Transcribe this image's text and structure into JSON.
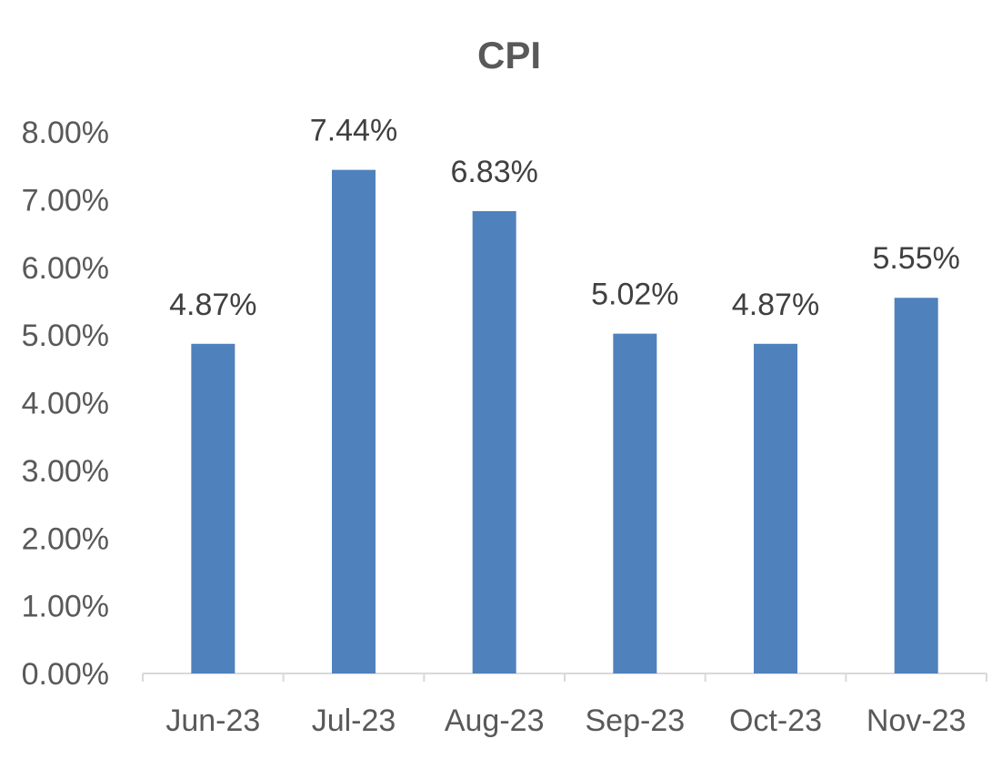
{
  "chart_data": {
    "type": "bar",
    "title": "CPI",
    "xlabel": "",
    "ylabel": "",
    "categories": [
      "Jun-23",
      "Jul-23",
      "Aug-23",
      "Sep-23",
      "Oct-23",
      "Nov-23"
    ],
    "series": [
      {
        "values": [
          4.87,
          7.44,
          6.83,
          5.02,
          4.87,
          5.55
        ],
        "data_labels": [
          "4.87%",
          "7.44%",
          "6.83%",
          "5.02%",
          "4.87%",
          "5.55%"
        ],
        "color": "#4F81BD"
      }
    ],
    "ylim": [
      0,
      8
    ],
    "y_ticks": [
      0,
      1,
      2,
      3,
      4,
      5,
      6,
      7,
      8
    ],
    "y_tick_labels": [
      "0.00%",
      "1.00%",
      "2.00%",
      "3.00%",
      "4.00%",
      "5.00%",
      "6.00%",
      "7.00%",
      "8.00%"
    ],
    "grid": false,
    "legend": "none"
  },
  "colors": {
    "bar": "#4F81BD",
    "axis": "#D9D9D9",
    "text": "#595959"
  }
}
